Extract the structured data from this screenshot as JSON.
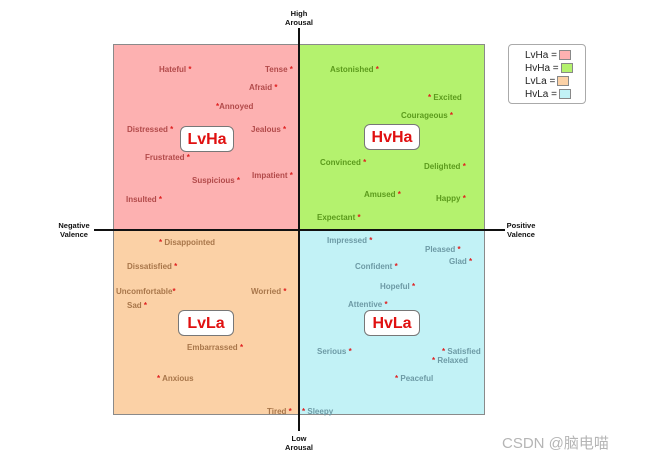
{
  "axes": {
    "top": "High\nArousal",
    "bottom": "Low\nArousal",
    "left": "Negative\nValence",
    "right": "Positive\nValence"
  },
  "quadrant_labels": {
    "lvha": "LvHa",
    "hvha": "HvHa",
    "lvla": "LvLa",
    "hvla": "HvLa"
  },
  "legend": [
    {
      "label": "LvHa =",
      "color": "#fdb1b1"
    },
    {
      "label": "HvHa =",
      "color": "#b4f26e"
    },
    {
      "label": "LvLa =",
      "color": "#fbd1a6"
    },
    {
      "label": "HvLa =",
      "color": "#c2f2f6"
    }
  ],
  "words": {
    "lvha": [
      "Hateful",
      "Tense",
      "Afraid",
      "Annoyed",
      "Distressed",
      "Jealous",
      "Frustrated",
      "Suspicious",
      "Impatient",
      "Insulted"
    ],
    "hvha": [
      "Astonished",
      "Excited",
      "Courageous",
      "Convinced",
      "Delighted",
      "Amused",
      "Happy",
      "Expectant"
    ],
    "lvla": [
      "Disappointed",
      "Dissatisfied",
      "Uncomfortable",
      "Worried",
      "Sad",
      "Embarrassed",
      "Anxious",
      "Tired"
    ],
    "hvla": [
      "Impressed",
      "Pleased",
      "Glad",
      "Confident",
      "Hopeful",
      "Attentive",
      "Serious",
      "Satisfied",
      "Relaxed",
      "Peaceful",
      "Sleepy"
    ]
  },
  "watermark": "CSDN @脑电喵"
}
